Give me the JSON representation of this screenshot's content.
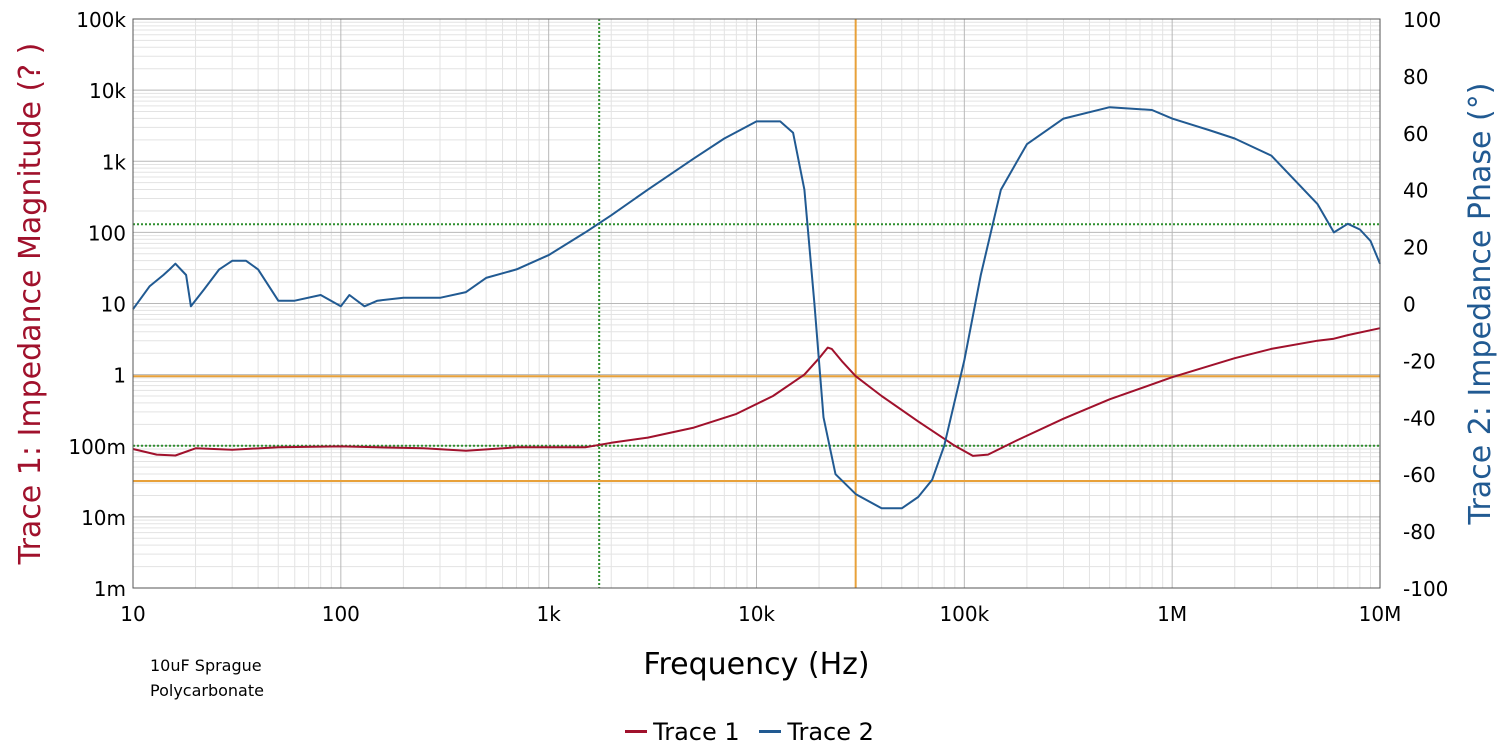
{
  "chart_data": {
    "type": "line",
    "xlabel": "Frequency (Hz)",
    "ylabel_left": "Trace 1: Impedance Magnitude (? )",
    "ylabel_right": "Trace 2: Impedance Phase (°)",
    "x_scale": "log",
    "xlim": [
      10,
      10000000
    ],
    "y_left_scale": "log",
    "y_left_lim": [
      0.001,
      100000
    ],
    "y_right_lim": [
      -100,
      100
    ],
    "grid": true,
    "legend_position": "bottom-center",
    "x_ticks": [
      {
        "value": 10,
        "label": "10"
      },
      {
        "value": 100,
        "label": "100"
      },
      {
        "value": 1000,
        "label": "1k"
      },
      {
        "value": 10000,
        "label": "10k"
      },
      {
        "value": 100000,
        "label": "100k"
      },
      {
        "value": 1000000,
        "label": "1M"
      },
      {
        "value": 10000000,
        "label": "10M"
      }
    ],
    "y_left_ticks": [
      {
        "value": 0.001,
        "label": "1m"
      },
      {
        "value": 0.01,
        "label": "10m"
      },
      {
        "value": 0.1,
        "label": "100m"
      },
      {
        "value": 1,
        "label": "1"
      },
      {
        "value": 10,
        "label": "10"
      },
      {
        "value": 100,
        "label": "100"
      },
      {
        "value": 1000,
        "label": "1k"
      },
      {
        "value": 10000,
        "label": "10k"
      },
      {
        "value": 100000,
        "label": "100k"
      }
    ],
    "y_right_ticks": [
      -100,
      -80,
      -60,
      -40,
      -20,
      0,
      20,
      40,
      60,
      80,
      100
    ],
    "series": [
      {
        "name": "Trace 1",
        "axis": "left",
        "color": "#a0112c",
        "points": [
          [
            10,
            0.09
          ],
          [
            13,
            0.075
          ],
          [
            16,
            0.073
          ],
          [
            20,
            0.092
          ],
          [
            30,
            0.088
          ],
          [
            50,
            0.095
          ],
          [
            100,
            0.098
          ],
          [
            150,
            0.095
          ],
          [
            250,
            0.092
          ],
          [
            400,
            0.085
          ],
          [
            700,
            0.095
          ],
          [
            1000,
            0.095
          ],
          [
            1500,
            0.095
          ],
          [
            2000,
            0.11
          ],
          [
            3000,
            0.13
          ],
          [
            5000,
            0.18
          ],
          [
            8000,
            0.28
          ],
          [
            12000,
            0.5
          ],
          [
            17000,
            1.0
          ],
          [
            20000,
            1.7
          ],
          [
            22000,
            2.4
          ],
          [
            23000,
            2.3
          ],
          [
            26000,
            1.5
          ],
          [
            30000,
            0.95
          ],
          [
            40000,
            0.5
          ],
          [
            60000,
            0.22
          ],
          [
            90000,
            0.1
          ],
          [
            110000,
            0.072
          ],
          [
            130000,
            0.075
          ],
          [
            180000,
            0.12
          ],
          [
            300000,
            0.24
          ],
          [
            500000,
            0.45
          ],
          [
            1000000,
            0.92
          ],
          [
            2000000,
            1.7
          ],
          [
            3000000,
            2.3
          ],
          [
            5000000,
            3.0
          ],
          [
            6000000,
            3.2
          ],
          [
            7000000,
            3.6
          ],
          [
            10000000,
            4.5
          ]
        ]
      },
      {
        "name": "Trace 2",
        "axis": "right",
        "color": "#215a92",
        "points": [
          [
            10,
            -2
          ],
          [
            12,
            6
          ],
          [
            14,
            10
          ],
          [
            15,
            12
          ],
          [
            16,
            14
          ],
          [
            18,
            10
          ],
          [
            19,
            -1
          ],
          [
            22,
            5
          ],
          [
            26,
            12
          ],
          [
            30,
            15
          ],
          [
            35,
            15
          ],
          [
            40,
            12
          ],
          [
            50,
            1
          ],
          [
            60,
            1
          ],
          [
            80,
            3
          ],
          [
            100,
            -1
          ],
          [
            110,
            3
          ],
          [
            130,
            -1
          ],
          [
            150,
            1
          ],
          [
            200,
            2
          ],
          [
            300,
            2
          ],
          [
            400,
            4
          ],
          [
            500,
            9
          ],
          [
            700,
            12
          ],
          [
            1000,
            17
          ],
          [
            1500,
            25
          ],
          [
            2000,
            31
          ],
          [
            3000,
            40
          ],
          [
            5000,
            51
          ],
          [
            7000,
            58
          ],
          [
            10000,
            64
          ],
          [
            13000,
            64
          ],
          [
            15000,
            60
          ],
          [
            17000,
            40
          ],
          [
            19000,
            0
          ],
          [
            21000,
            -40
          ],
          [
            24000,
            -60
          ],
          [
            30000,
            -67
          ],
          [
            40000,
            -72
          ],
          [
            50000,
            -72
          ],
          [
            60000,
            -68
          ],
          [
            70000,
            -62
          ],
          [
            80000,
            -50
          ],
          [
            100000,
            -20
          ],
          [
            120000,
            10
          ],
          [
            150000,
            40
          ],
          [
            200000,
            56
          ],
          [
            300000,
            65
          ],
          [
            500000,
            69
          ],
          [
            800000,
            68
          ],
          [
            1000000,
            65
          ],
          [
            1500000,
            61
          ],
          [
            2000000,
            58
          ],
          [
            3000000,
            52
          ],
          [
            5000000,
            35
          ],
          [
            6000000,
            25
          ],
          [
            7000000,
            28
          ],
          [
            8000000,
            26
          ],
          [
            9000000,
            22
          ],
          [
            10000000,
            14
          ]
        ]
      }
    ],
    "cursors": [
      {
        "orientation": "vertical",
        "x": 1750,
        "color": "#2f8f2f",
        "style": "dotted"
      },
      {
        "orientation": "vertical",
        "x": 30000,
        "color": "#e8a13a",
        "style": "solid"
      },
      {
        "orientation": "horizontal",
        "axis": "left",
        "y": 130,
        "color": "#2f8f2f",
        "style": "dotted"
      },
      {
        "orientation": "horizontal",
        "axis": "left",
        "y": 0.1,
        "color": "#2f8f2f",
        "style": "dotted"
      },
      {
        "orientation": "horizontal",
        "axis": "left",
        "y": 0.95,
        "color": "#e8a13a",
        "style": "solid"
      },
      {
        "orientation": "horizontal",
        "axis": "left",
        "y": 0.032,
        "color": "#e8a13a",
        "style": "solid"
      }
    ]
  },
  "annotation": [
    "10uF Sprague",
    "Polycarbonate"
  ]
}
